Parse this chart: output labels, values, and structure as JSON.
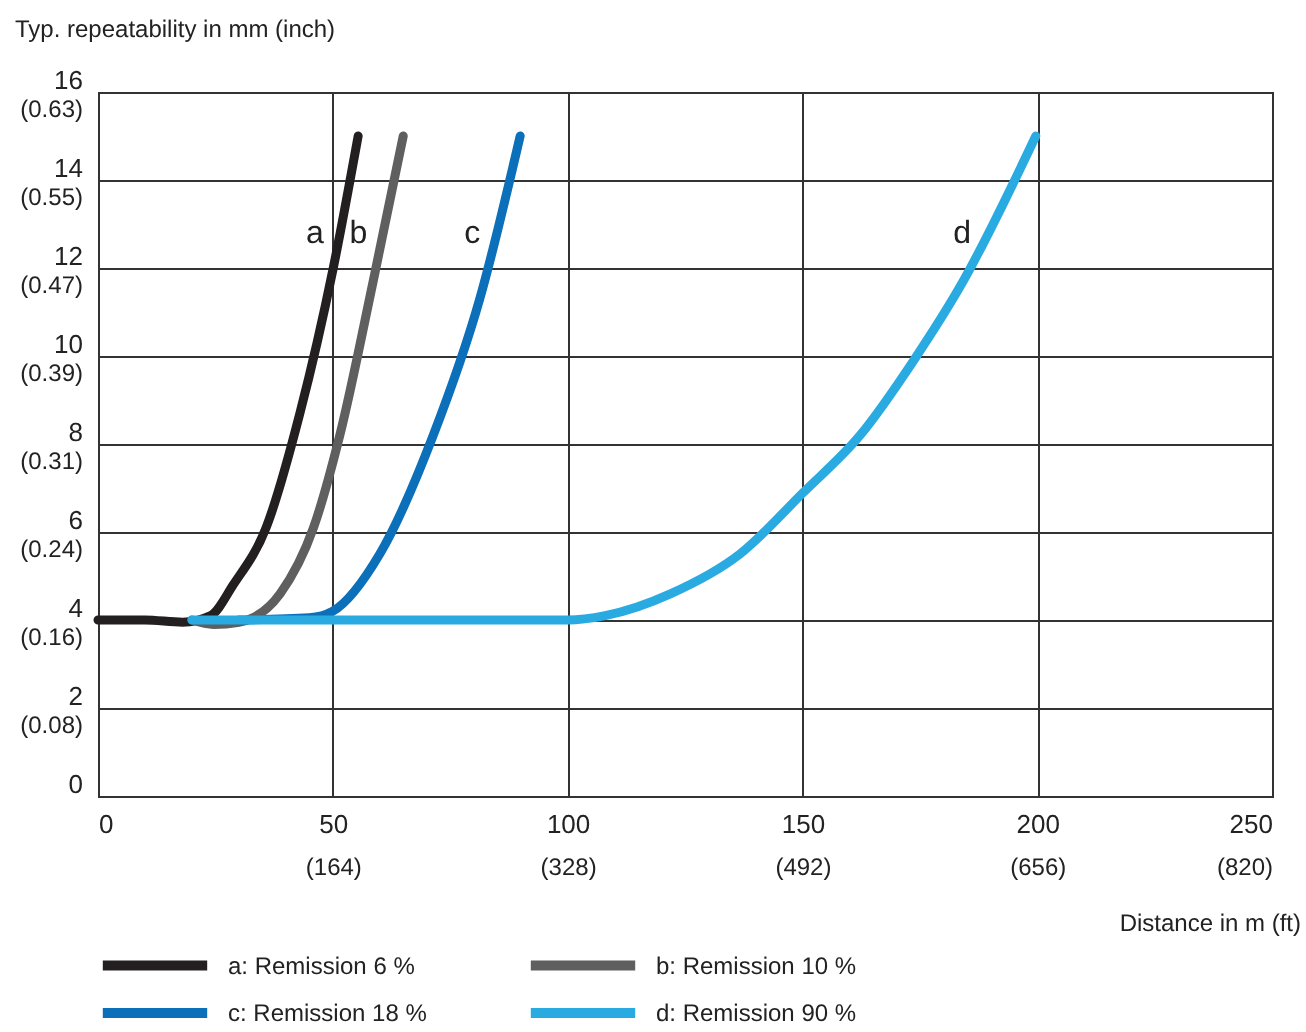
{
  "chart_data": {
    "type": "line",
    "xlabel": "Distance in m (ft)",
    "ylabel": "Typ. repeatability in mm (inch)",
    "xlim": [
      0,
      250
    ],
    "ylim": [
      0,
      16
    ],
    "xticks": [
      0,
      50,
      100,
      150,
      200,
      250
    ],
    "yticks": [
      0,
      2,
      4,
      6,
      8,
      10,
      12,
      14,
      16
    ],
    "x2lim": [
      0,
      820.2
    ],
    "x2ticks": [
      {
        "value": 164.04,
        "label": "(164)"
      },
      {
        "value": 328.08,
        "label": "(328)"
      },
      {
        "value": 492.13,
        "label": "(492)"
      },
      {
        "value": 656.17,
        "label": "(656)"
      },
      {
        "value": 820.2,
        "label": "(820)"
      }
    ],
    "y2lim": [
      0,
      0.63
    ],
    "y2ticks": [
      {
        "value": 0.0787,
        "label": "(0.08)"
      },
      {
        "value": 0.1575,
        "label": "(0.16)"
      },
      {
        "value": 0.2362,
        "label": "(0.24)"
      },
      {
        "value": 0.315,
        "label": "(0.31)"
      },
      {
        "value": 0.3937,
        "label": "(0.39)"
      },
      {
        "value": 0.4724,
        "label": "(0.47)"
      },
      {
        "value": 0.5512,
        "label": "(0.55)"
      },
      {
        "value": 0.63,
        "label": "(0.63)"
      }
    ],
    "grid": true,
    "legend": "bottom",
    "series": [
      {
        "name": "a: Remission 6 %",
        "color": "#231f20",
        "x": [
          0,
          10,
          18,
          24,
          28.8,
          35.8,
          43,
          50.1,
          55.4
        ],
        "values": [
          4,
          4,
          3.95,
          4.1,
          4.8,
          6.1,
          8.7,
          12,
          15
        ]
      },
      {
        "name": "b: Remission 10 %",
        "color": "#5f5f5f",
        "x": [
          20,
          24.6,
          30,
          38.8,
          45.9,
          51.5,
          58.6,
          65
        ],
        "values": [
          4,
          3.9,
          3.95,
          4.6,
          6.1,
          8.2,
          11.7,
          15
        ]
      },
      {
        "name": "c: Remission 18 %",
        "color": "#0b6fba",
        "x": [
          30,
          45,
          50,
          60,
          71.4,
          81.3,
          89.9
        ],
        "values": [
          4,
          4.05,
          4.2,
          5.5,
          8.2,
          11.3,
          15
        ]
      },
      {
        "name": "d: Remission 90 %",
        "color": "#29abe2",
        "x": [
          20,
          60,
          100,
          108,
          122,
          136.7,
          150.2,
          162.3,
          173.7,
          183.7,
          199.7
        ],
        "values": [
          4,
          4,
          4,
          4.1,
          4.6,
          5.5,
          6.9,
          8.2,
          9.9,
          11.6,
          15
        ]
      }
    ],
    "annotations": [
      "a",
      "b",
      "c",
      "d"
    ]
  }
}
